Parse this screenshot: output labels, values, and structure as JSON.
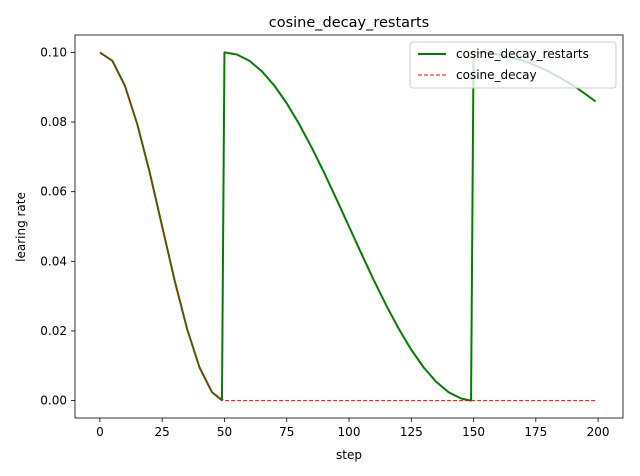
{
  "chart_data": {
    "type": "line",
    "title": "cosine_decay_restarts",
    "xlabel": "step",
    "ylabel": "learing rate",
    "xlim": [
      -10,
      210
    ],
    "ylim": [
      -0.005,
      0.105
    ],
    "xticks": [
      0,
      25,
      50,
      75,
      100,
      125,
      150,
      175,
      200
    ],
    "yticks": [
      0.0,
      0.02,
      0.04,
      0.06,
      0.08,
      0.1
    ],
    "ytick_labels": [
      "0.00",
      "0.02",
      "0.04",
      "0.06",
      "0.08",
      "0.10"
    ],
    "grid": false,
    "legend_position": "upper right",
    "series": [
      {
        "name": "cosine_decay_restarts",
        "color": "#008000",
        "style": "solid",
        "x": [
          0,
          5,
          10,
          15,
          20,
          25,
          30,
          35,
          40,
          45,
          49,
          50,
          55,
          60,
          65,
          70,
          75,
          80,
          85,
          90,
          95,
          100,
          105,
          110,
          115,
          120,
          125,
          130,
          135,
          140,
          145,
          149,
          150,
          155,
          160,
          165,
          170,
          175,
          180,
          185,
          190,
          195,
          199
        ],
        "y": [
          0.1,
          0.0976,
          0.0905,
          0.0794,
          0.0655,
          0.05,
          0.0345,
          0.0206,
          0.0095,
          0.0024,
          0.0001,
          0.1,
          0.0994,
          0.0976,
          0.0946,
          0.0905,
          0.0854,
          0.0794,
          0.0727,
          0.0655,
          0.0578,
          0.05,
          0.0422,
          0.0345,
          0.0273,
          0.0206,
          0.0146,
          0.0095,
          0.0054,
          0.0024,
          0.0006,
          0.0,
          0.1,
          0.0999,
          0.0994,
          0.0986,
          0.0976,
          0.0962,
          0.0946,
          0.0926,
          0.0905,
          0.088,
          0.0859
        ]
      },
      {
        "name": "cosine_decay",
        "color": "#ff0000",
        "style": "dashed",
        "x": [
          0,
          5,
          10,
          15,
          20,
          25,
          30,
          35,
          40,
          45,
          50,
          60,
          80,
          100,
          120,
          140,
          160,
          180,
          199
        ],
        "y": [
          0.1,
          0.0976,
          0.0905,
          0.0794,
          0.0655,
          0.05,
          0.0345,
          0.0206,
          0.0095,
          0.0024,
          0.0,
          0.0,
          0.0,
          0.0,
          0.0,
          0.0,
          0.0,
          0.0,
          0.0
        ]
      }
    ]
  }
}
